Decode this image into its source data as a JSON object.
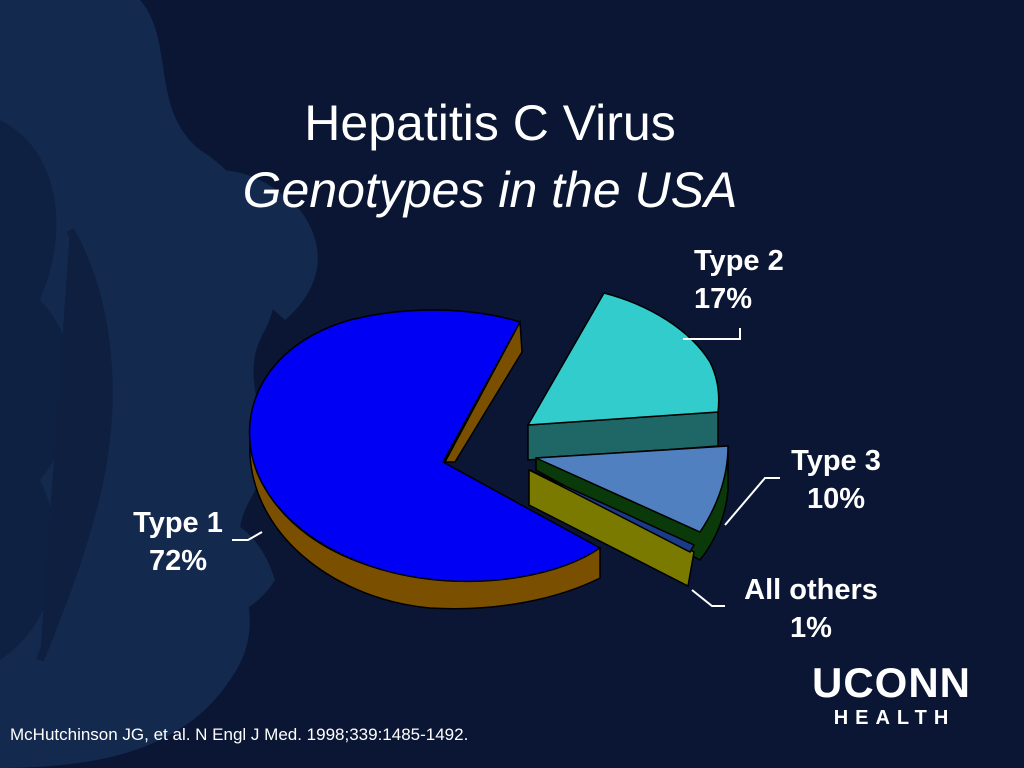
{
  "title": {
    "main": "Hepatitis C Virus",
    "sub": "Genotypes in the USA"
  },
  "chart_data": {
    "type": "pie",
    "style": "3d-exploded",
    "slices": [
      {
        "label": "Type 1",
        "value": 72,
        "display": "72%",
        "color": "#0000f5",
        "side_color": "#7a5000"
      },
      {
        "label": "Type 2",
        "value": 17,
        "display": "17%",
        "color": "#33cccc",
        "side_color": "#1f6666"
      },
      {
        "label": "Type 3",
        "value": 10,
        "display": "10%",
        "color": "#5080c0",
        "side_color": "#0a3a0a"
      },
      {
        "label": "All others",
        "value": 1,
        "display": "1%",
        "color": "#1a3a8a",
        "side_color": "#7a7a00"
      }
    ]
  },
  "citation": "McHutchinson JG, et al. N Engl J Med. 1998;339:1485-1492.",
  "logo": {
    "top": "UCONN",
    "bottom": "HEALTH"
  }
}
